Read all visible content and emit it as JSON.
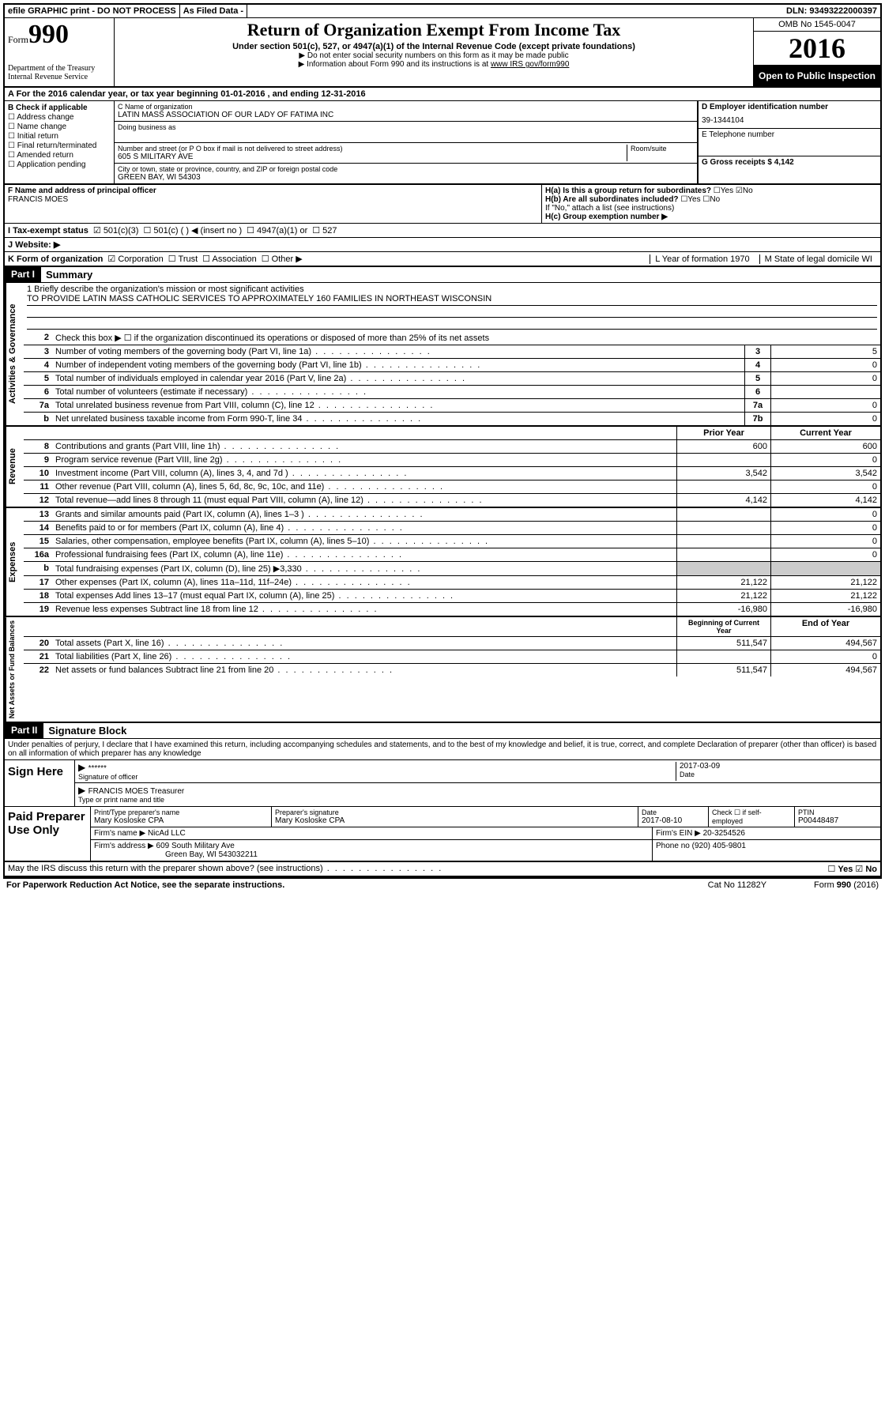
{
  "topbar": {
    "efile": "efile GRAPHIC print - DO NOT PROCESS",
    "asfiled": "As Filed Data -",
    "dln": "DLN: 93493222000397"
  },
  "header": {
    "form_word": "Form",
    "form_num": "990",
    "dept": "Department of the Treasury\nInternal Revenue Service",
    "title": "Return of Organization Exempt From Income Tax",
    "subtitle": "Under section 501(c), 527, or 4947(a)(1) of the Internal Revenue Code (except private foundations)",
    "note1": "▶ Do not enter social security numbers on this form as it may be made public",
    "note2": "▶ Information about Form 990 and its instructions is at ",
    "note2_link": "www IRS gov/form990",
    "omb": "OMB No 1545-0047",
    "year": "2016",
    "open": "Open to Public Inspection"
  },
  "rowA": "A  For the 2016 calendar year, or tax year beginning 01-01-2016   , and ending 12-31-2016",
  "B": {
    "label": "B Check if applicable",
    "items": [
      "Address change",
      "Name change",
      "Initial return",
      "Final return/terminated",
      "Amended return",
      "Application pending"
    ]
  },
  "C": {
    "name_label": "C Name of organization",
    "name": "LATIN MASS ASSOCIATION OF OUR LADY OF FATIMA INC",
    "dba_label": "Doing business as",
    "addr_label": "Number and street (or P O  box if mail is not delivered to street address)",
    "room_label": "Room/suite",
    "addr": "605 S MILITARY AVE",
    "city_label": "City or town, state or province, country, and ZIP or foreign postal code",
    "city": "GREEN BAY, WI  54303"
  },
  "D": {
    "label": "D Employer identification number",
    "val": "39-1344104"
  },
  "E": {
    "label": "E Telephone number",
    "val": ""
  },
  "G": {
    "label": "G Gross receipts $ 4,142"
  },
  "F": {
    "label": "F  Name and address of principal officer",
    "val": "FRANCIS MOES"
  },
  "H": {
    "a": "H(a)  Is this a group return for subordinates?",
    "b": "H(b)  Are all subordinates included?",
    "b2": "If \"No,\" attach a list  (see instructions)",
    "c": "H(c)  Group exemption number ▶",
    "yes": "Yes",
    "no": "No"
  },
  "I": {
    "label": "I   Tax-exempt status",
    "opts": [
      "501(c)(3)",
      "501(c) (  ) ◀ (insert no )",
      "4947(a)(1) or",
      "527"
    ]
  },
  "J": "J   Website: ▶",
  "K": {
    "label": "K Form of organization",
    "opts": [
      "Corporation",
      "Trust",
      "Association",
      "Other ▶"
    ],
    "L": "L Year of formation  1970",
    "M": "M State of legal domicile  WI"
  },
  "partI": {
    "tag": "Part I",
    "title": "Summary"
  },
  "mission": {
    "q": "1  Briefly describe the organization's mission or most significant activities",
    "a": "TO PROVIDE LATIN MASS CATHOLIC SERVICES TO APPROXIMATELY 160 FAMILIES IN NORTHEAST WISCONSIN"
  },
  "gov": {
    "label": "Activities & Governance",
    "l2": "Check this box ▶ ☐  if the organization discontinued its operations or disposed of more than 25% of its net assets",
    "lines": [
      {
        "n": "3",
        "t": "Number of voting members of the governing body (Part VI, line 1a)",
        "b": "3",
        "v": "5"
      },
      {
        "n": "4",
        "t": "Number of independent voting members of the governing body (Part VI, line 1b)",
        "b": "4",
        "v": "0"
      },
      {
        "n": "5",
        "t": "Total number of individuals employed in calendar year 2016 (Part V, line 2a)",
        "b": "5",
        "v": "0"
      },
      {
        "n": "6",
        "t": "Total number of volunteers (estimate if necessary)",
        "b": "6",
        "v": ""
      },
      {
        "n": "7a",
        "t": "Total unrelated business revenue from Part VIII, column (C), line 12",
        "b": "7a",
        "v": "0"
      },
      {
        "n": "b",
        "t": "Net unrelated business taxable income from Form 990-T, line 34",
        "b": "7b",
        "v": "0"
      }
    ]
  },
  "rev": {
    "label": "Revenue",
    "hdr_prior": "Prior Year",
    "hdr_curr": "Current Year",
    "lines": [
      {
        "n": "8",
        "t": "Contributions and grants (Part VIII, line 1h)",
        "p": "600",
        "c": "600"
      },
      {
        "n": "9",
        "t": "Program service revenue (Part VIII, line 2g)",
        "p": "",
        "c": "0"
      },
      {
        "n": "10",
        "t": "Investment income (Part VIII, column (A), lines 3, 4, and 7d )",
        "p": "3,542",
        "c": "3,542"
      },
      {
        "n": "11",
        "t": "Other revenue (Part VIII, column (A), lines 5, 6d, 8c, 9c, 10c, and 11e)",
        "p": "",
        "c": "0"
      },
      {
        "n": "12",
        "t": "Total revenue—add lines 8 through 11 (must equal Part VIII, column (A), line 12)",
        "p": "4,142",
        "c": "4,142"
      }
    ]
  },
  "exp": {
    "label": "Expenses",
    "lines": [
      {
        "n": "13",
        "t": "Grants and similar amounts paid (Part IX, column (A), lines 1–3 )",
        "p": "",
        "c": "0"
      },
      {
        "n": "14",
        "t": "Benefits paid to or for members (Part IX, column (A), line 4)",
        "p": "",
        "c": "0"
      },
      {
        "n": "15",
        "t": "Salaries, other compensation, employee benefits (Part IX, column (A), lines 5–10)",
        "p": "",
        "c": "0"
      },
      {
        "n": "16a",
        "t": "Professional fundraising fees (Part IX, column (A), line 11e)",
        "p": "",
        "c": "0"
      },
      {
        "n": "b",
        "t": "Total fundraising expenses (Part IX, column (D), line 25) ▶3,330",
        "p": "GREY",
        "c": "GREY"
      },
      {
        "n": "17",
        "t": "Other expenses (Part IX, column (A), lines 11a–11d, 11f–24e)",
        "p": "21,122",
        "c": "21,122"
      },
      {
        "n": "18",
        "t": "Total expenses  Add lines 13–17 (must equal Part IX, column (A), line 25)",
        "p": "21,122",
        "c": "21,122"
      },
      {
        "n": "19",
        "t": "Revenue less expenses  Subtract line 18 from line 12",
        "p": "-16,980",
        "c": "-16,980"
      }
    ]
  },
  "net": {
    "label": "Net Assets or Fund Balances",
    "hdr_beg": "Beginning of Current Year",
    "hdr_end": "End of Year",
    "lines": [
      {
        "n": "20",
        "t": "Total assets (Part X, line 16)",
        "p": "511,547",
        "c": "494,567"
      },
      {
        "n": "21",
        "t": "Total liabilities (Part X, line 26)",
        "p": "",
        "c": "0"
      },
      {
        "n": "22",
        "t": "Net assets or fund balances  Subtract line 21 from line 20",
        "p": "511,547",
        "c": "494,567"
      }
    ]
  },
  "partII": {
    "tag": "Part II",
    "title": "Signature Block"
  },
  "declare": "Under penalties of perjury, I declare that I have examined this return, including accompanying schedules and statements, and to the best of my knowledge and belief, it is true, correct, and complete  Declaration of preparer (other than officer) is based on all information of which preparer has any knowledge",
  "sign": {
    "label": "Sign Here",
    "stars": "******",
    "sig_label": "Signature of officer",
    "date": "2017-03-09",
    "date_label": "Date",
    "name": "FRANCIS MOES Treasurer",
    "name_label": "Type or print name and title"
  },
  "paid": {
    "label": "Paid Preparer Use Only",
    "h1": "Print/Type preparer's name",
    "v1": "Mary Kosloske CPA",
    "h2": "Preparer's signature",
    "v2": "Mary Kosloske CPA",
    "h3": "Date",
    "v3": "2017-08-10",
    "h4": "Check ☐ if self-employed",
    "h5": "PTIN",
    "v5": "P00448487",
    "firm_label": "Firm's name   ▶",
    "firm": "NicAd LLC",
    "ein_label": "Firm's EIN ▶",
    "ein": "20-3254526",
    "addr_label": "Firm's address ▶",
    "addr": "609 South Military Ave",
    "addr2": "Green Bay, WI  543032211",
    "phone_label": "Phone no",
    "phone": "(920) 405-9801"
  },
  "discuss": "May the IRS discuss this return with the preparer shown above? (see instructions)",
  "footer": {
    "left": "For Paperwork Reduction Act Notice, see the separate instructions.",
    "mid": "Cat  No  11282Y",
    "right": "Form 990 (2016)"
  }
}
